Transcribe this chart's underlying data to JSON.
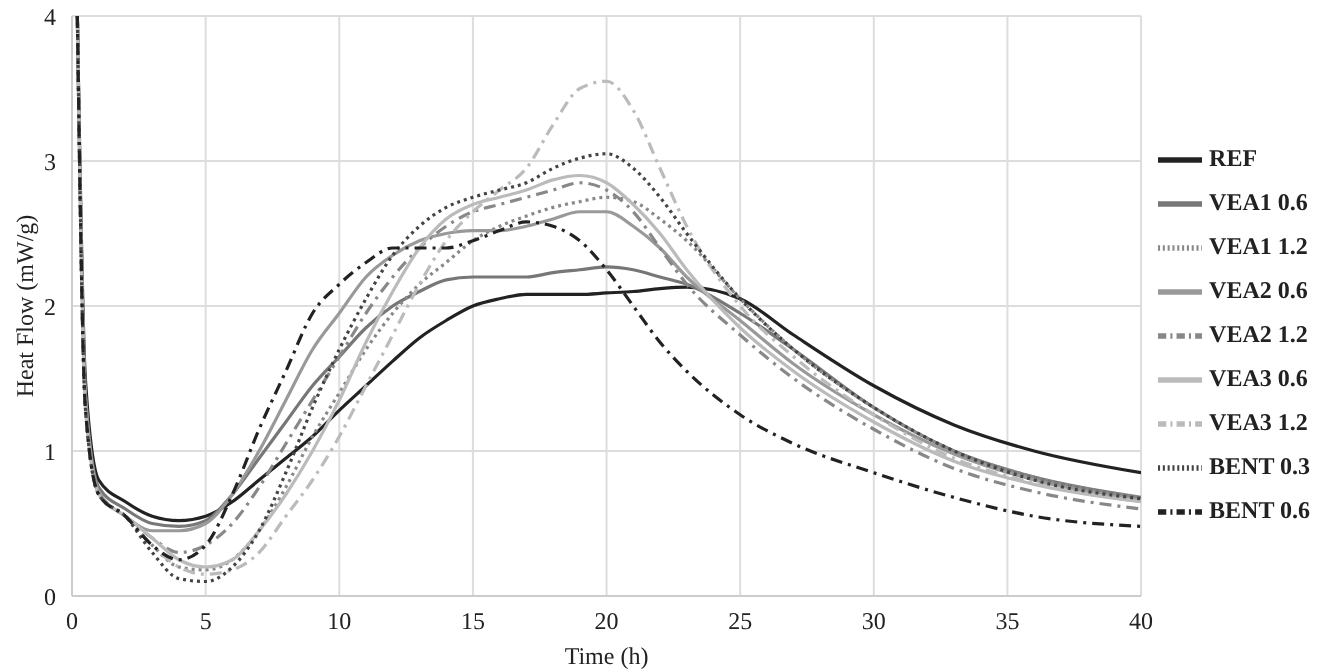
{
  "chart_data": {
    "type": "line",
    "xlabel": "Time (h)",
    "ylabel": "Heat Flow (mW/g)",
    "x": [
      0.2,
      0.5,
      1,
      2,
      3,
      4,
      5,
      6,
      7,
      8,
      9,
      10,
      11,
      12,
      13,
      14,
      15,
      16,
      17,
      18,
      19,
      20,
      21,
      22,
      23,
      25,
      27,
      30,
      33,
      36,
      40
    ],
    "series": [
      {
        "name": "REF",
        "color": "#222222",
        "line_style": "solid",
        "values": [
          4.0,
          1.5,
          0.8,
          0.65,
          0.55,
          0.52,
          0.55,
          0.65,
          0.8,
          0.95,
          1.1,
          1.28,
          1.45,
          1.62,
          1.78,
          1.9,
          2.0,
          2.05,
          2.08,
          2.08,
          2.08,
          2.09,
          2.1,
          2.12,
          2.13,
          2.05,
          1.8,
          1.45,
          1.18,
          1.0,
          0.85
        ]
      },
      {
        "name": "VEA1 0.6",
        "color": "#777777",
        "line_style": "solid",
        "values": [
          4.0,
          1.4,
          0.75,
          0.6,
          0.5,
          0.48,
          0.52,
          0.7,
          0.95,
          1.2,
          1.45,
          1.65,
          1.85,
          2.0,
          2.1,
          2.18,
          2.2,
          2.2,
          2.2,
          2.23,
          2.25,
          2.27,
          2.25,
          2.2,
          2.15,
          1.95,
          1.7,
          1.3,
          1.0,
          0.82,
          0.68
        ]
      },
      {
        "name": "VEA1 1.2",
        "color": "#888888",
        "line_style": "dotted",
        "values": [
          4.0,
          1.3,
          0.7,
          0.55,
          0.35,
          0.2,
          0.18,
          0.25,
          0.45,
          0.75,
          1.1,
          1.4,
          1.7,
          1.95,
          2.15,
          2.3,
          2.45,
          2.55,
          2.62,
          2.68,
          2.72,
          2.75,
          2.72,
          2.6,
          2.45,
          2.05,
          1.7,
          1.3,
          1.0,
          0.82,
          0.68
        ]
      },
      {
        "name": "VEA2 0.6",
        "color": "#999999",
        "line_style": "solid",
        "values": [
          4.0,
          1.4,
          0.72,
          0.55,
          0.45,
          0.45,
          0.5,
          0.7,
          1.0,
          1.35,
          1.7,
          1.95,
          2.2,
          2.35,
          2.45,
          2.5,
          2.52,
          2.52,
          2.55,
          2.6,
          2.65,
          2.65,
          2.55,
          2.4,
          2.2,
          1.9,
          1.6,
          1.25,
          0.98,
          0.8,
          0.66
        ]
      },
      {
        "name": "VEA2 1.2",
        "color": "#888888",
        "line_style": "dashed",
        "values": [
          4.0,
          1.3,
          0.7,
          0.55,
          0.4,
          0.3,
          0.35,
          0.5,
          0.75,
          1.05,
          1.35,
          1.65,
          1.95,
          2.2,
          2.4,
          2.55,
          2.65,
          2.7,
          2.75,
          2.8,
          2.85,
          2.8,
          2.65,
          2.4,
          2.15,
          1.8,
          1.5,
          1.15,
          0.88,
          0.72,
          0.6
        ]
      },
      {
        "name": "VEA3 0.6",
        "color": "#bbbbbb",
        "line_style": "solid",
        "values": [
          4.0,
          1.3,
          0.7,
          0.55,
          0.4,
          0.25,
          0.2,
          0.25,
          0.45,
          0.7,
          1.0,
          1.35,
          1.75,
          2.1,
          2.4,
          2.6,
          2.7,
          2.75,
          2.8,
          2.87,
          2.9,
          2.85,
          2.7,
          2.5,
          2.25,
          1.85,
          1.55,
          1.2,
          0.93,
          0.77,
          0.65
        ]
      },
      {
        "name": "VEA3 1.2",
        "color": "#bbbbbb",
        "line_style": "dashed",
        "values": [
          4.0,
          1.3,
          0.7,
          0.55,
          0.35,
          0.2,
          0.15,
          0.18,
          0.3,
          0.55,
          0.8,
          1.1,
          1.45,
          1.8,
          2.15,
          2.45,
          2.65,
          2.8,
          2.95,
          3.25,
          3.5,
          3.55,
          3.35,
          2.95,
          2.55,
          2.0,
          1.65,
          1.25,
          0.95,
          0.78,
          0.65
        ]
      },
      {
        "name": "BENT 0.3",
        "color": "#444444",
        "line_style": "dotted",
        "values": [
          4.0,
          1.3,
          0.7,
          0.55,
          0.3,
          0.12,
          0.1,
          0.2,
          0.45,
          0.85,
          1.3,
          1.7,
          2.05,
          2.35,
          2.55,
          2.68,
          2.75,
          2.8,
          2.85,
          2.95,
          3.02,
          3.05,
          2.95,
          2.75,
          2.5,
          2.05,
          1.7,
          1.3,
          1.0,
          0.8,
          0.67
        ]
      },
      {
        "name": "BENT 0.6",
        "color": "#222222",
        "line_style": "dashed",
        "values": [
          4.0,
          1.3,
          0.7,
          0.55,
          0.35,
          0.25,
          0.35,
          0.7,
          1.15,
          1.55,
          1.95,
          2.15,
          2.3,
          2.4,
          2.4,
          2.4,
          2.45,
          2.52,
          2.58,
          2.55,
          2.45,
          2.25,
          2.0,
          1.75,
          1.55,
          1.25,
          1.05,
          0.85,
          0.68,
          0.55,
          0.48
        ]
      }
    ],
    "xlim": [
      0,
      40
    ],
    "ylim": [
      0,
      4
    ],
    "xticks": [
      0,
      5,
      10,
      15,
      20,
      25,
      30,
      35,
      40
    ],
    "yticks": [
      0,
      1,
      2,
      3,
      4
    ],
    "grid": true,
    "legend": "right",
    "marker": "none"
  }
}
